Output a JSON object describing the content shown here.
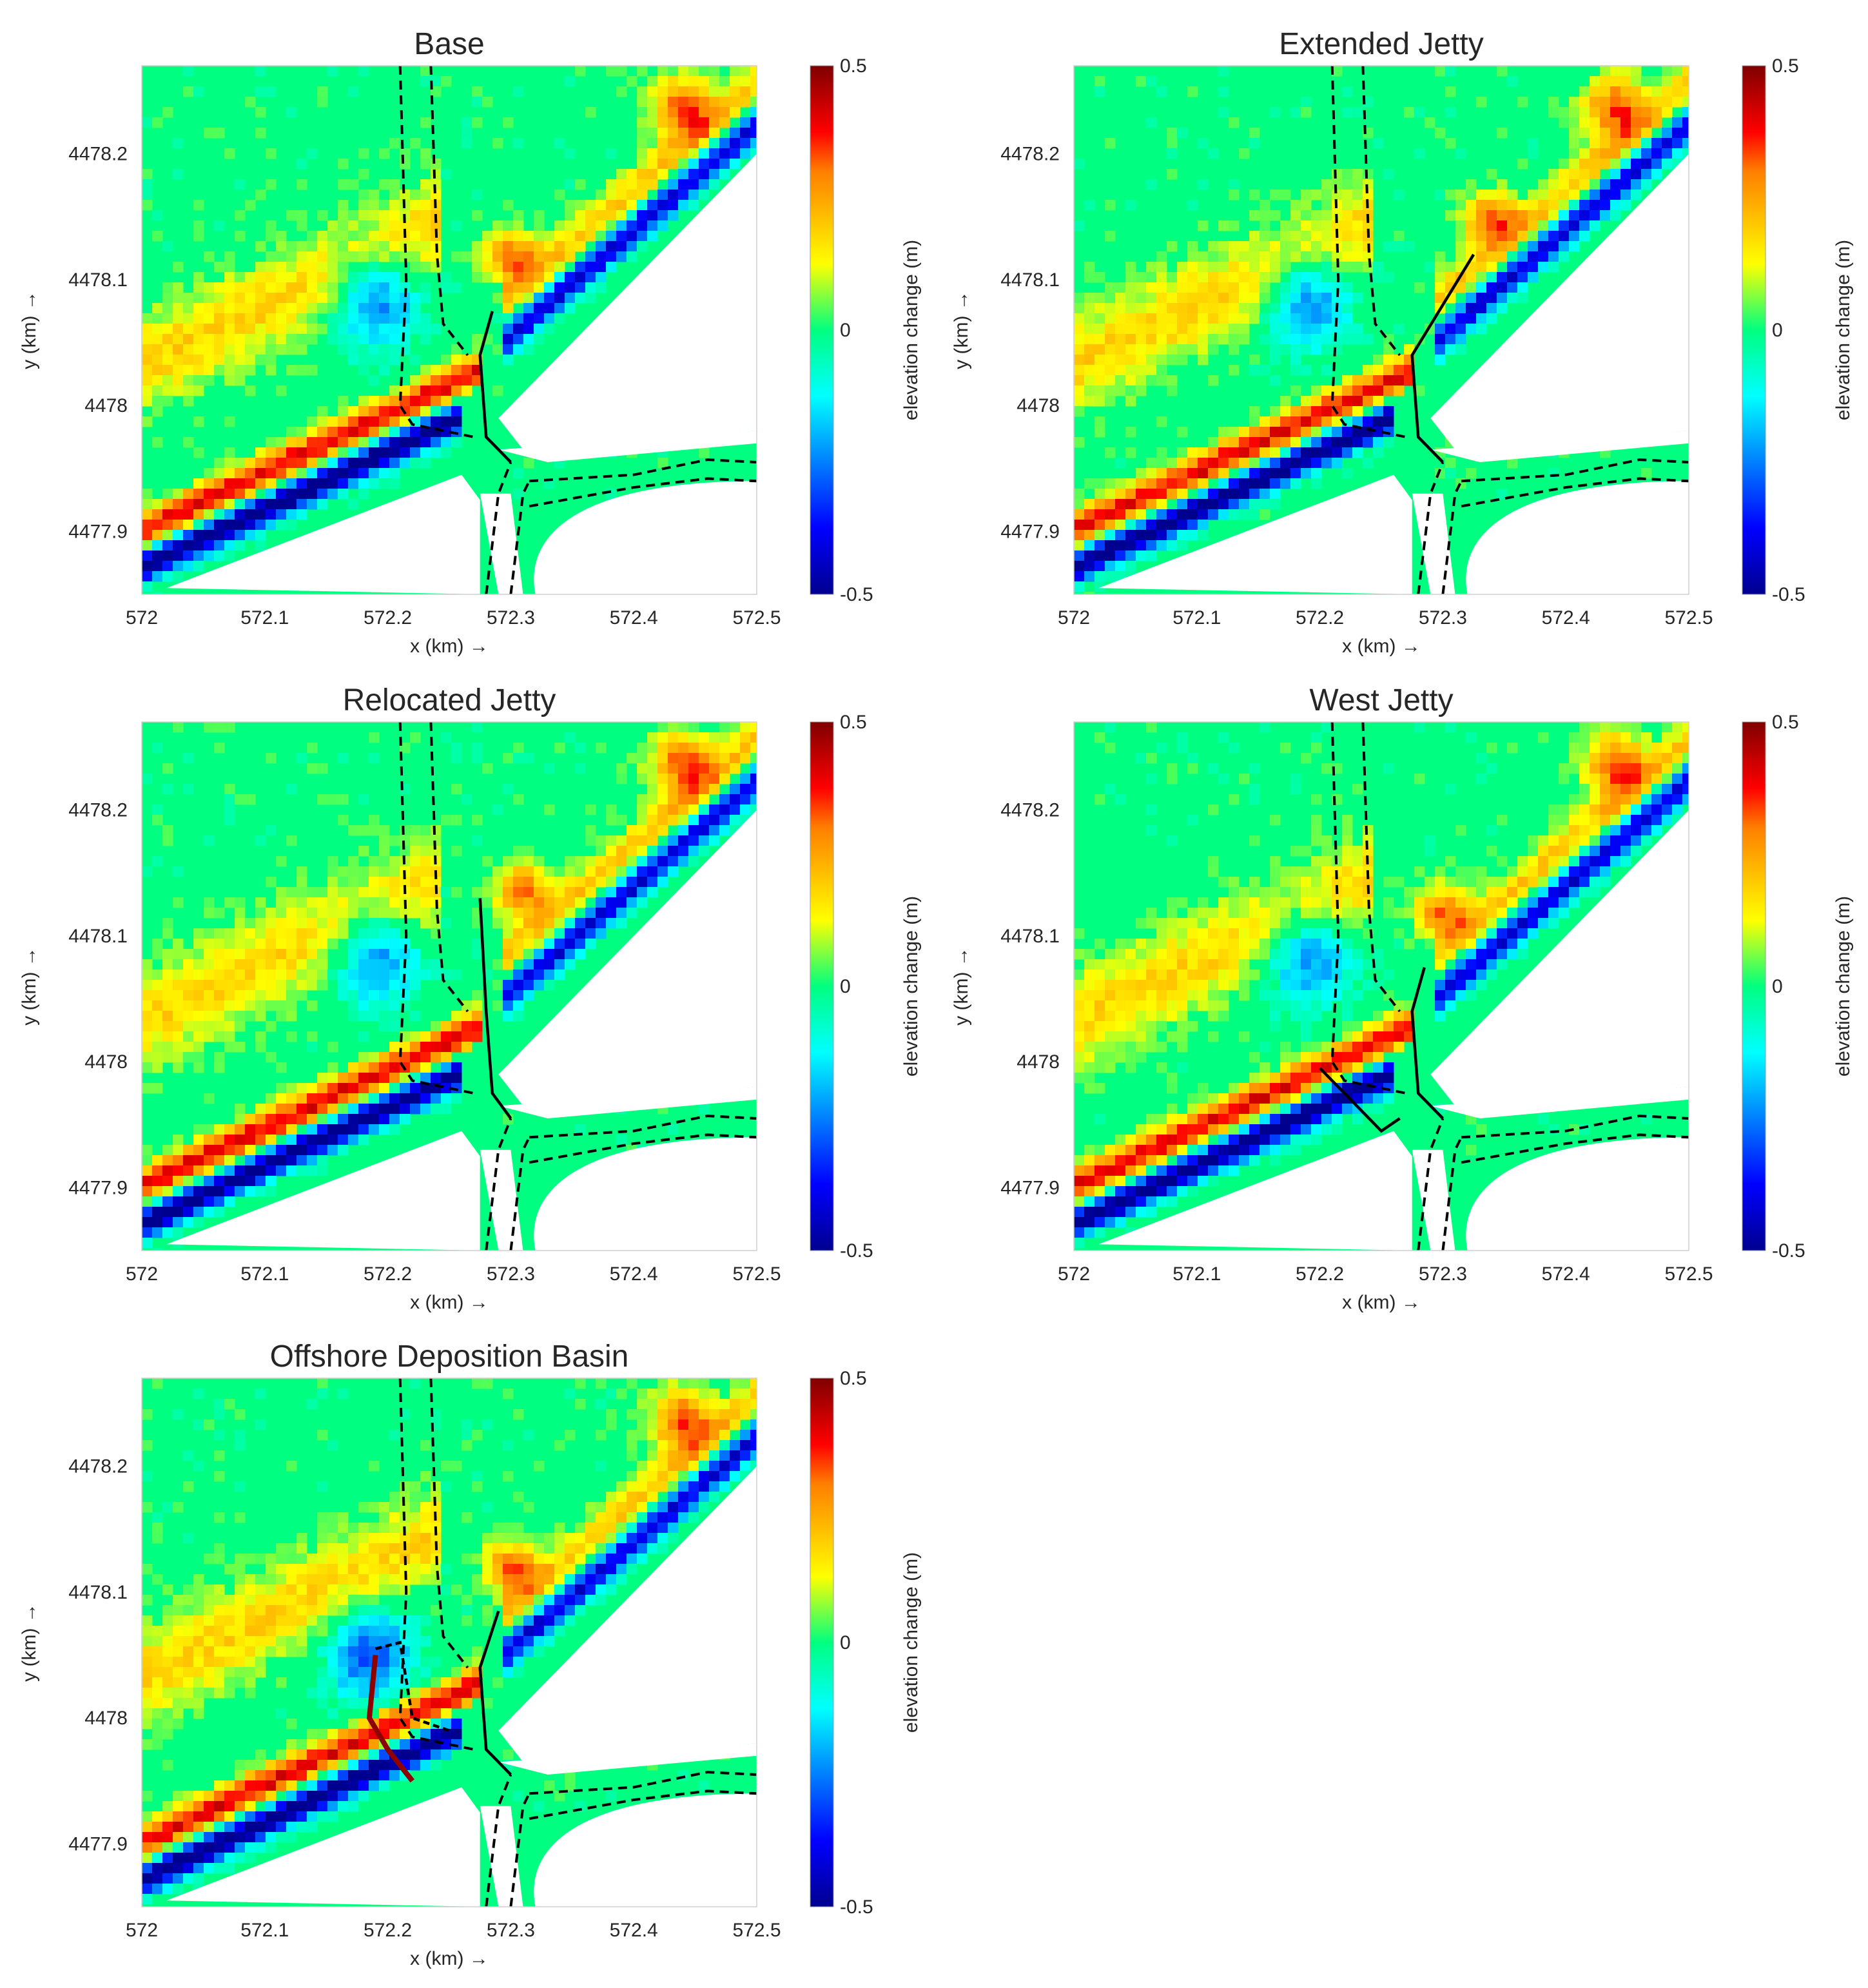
{
  "figure": {
    "x_axis_label": "x (km) →",
    "y_axis_label": "y (km) →",
    "colorbar_label": "elevation change (m)",
    "colorbar_ticks": [
      "0.5",
      "0",
      "-0.5"
    ],
    "colormap": "jet",
    "colormap_colors": [
      "#00008f",
      "#0000ff",
      "#00ffff",
      "#00ff80",
      "#ffff00",
      "#ff7f00",
      "#ff0000",
      "#7f0000"
    ],
    "background_color": "#00ff80",
    "land_color": "#ffffff",
    "structure_color": "#000000"
  },
  "chart_data": [
    {
      "type": "heatmap",
      "title": "Base",
      "xlabel": "x (km) →",
      "ylabel": "y (km) →",
      "xlim": [
        572,
        572.5
      ],
      "ylim": [
        4477.85,
        4478.27
      ],
      "x_ticks": [
        "572",
        "572.1",
        "572.2",
        "572.3",
        "572.4",
        "572.5"
      ],
      "y_ticks": [
        "4477.9",
        "4478",
        "4478.1",
        "4478.2"
      ],
      "colorbar": {
        "label": "elevation change (m)",
        "range": [
          -0.5,
          0.5
        ],
        "ticks": [
          "0.5",
          "0",
          "-0.5"
        ]
      },
      "variant": "base"
    },
    {
      "type": "heatmap",
      "title": "Extended Jetty",
      "xlabel": "x (km) →",
      "ylabel": "y (km) →",
      "xlim": [
        572,
        572.5
      ],
      "ylim": [
        4477.85,
        4478.27
      ],
      "x_ticks": [
        "572",
        "572.1",
        "572.2",
        "572.3",
        "572.4",
        "572.5"
      ],
      "y_ticks": [
        "4477.9",
        "4478",
        "4478.1",
        "4478.2"
      ],
      "colorbar": {
        "label": "elevation change (m)",
        "range": [
          -0.5,
          0.5
        ],
        "ticks": [
          "0.5",
          "0",
          "-0.5"
        ]
      },
      "variant": "extended"
    },
    {
      "type": "heatmap",
      "title": "Relocated Jetty",
      "xlabel": "x (km) →",
      "ylabel": "y (km) →",
      "xlim": [
        572,
        572.5
      ],
      "ylim": [
        4477.85,
        4478.27
      ],
      "x_ticks": [
        "572",
        "572.1",
        "572.2",
        "572.3",
        "572.4",
        "572.5"
      ],
      "y_ticks": [
        "4477.9",
        "4478",
        "4478.1",
        "4478.2"
      ],
      "colorbar": {
        "label": "elevation change (m)",
        "range": [
          -0.5,
          0.5
        ],
        "ticks": [
          "0.5",
          "0",
          "-0.5"
        ]
      },
      "variant": "relocated"
    },
    {
      "type": "heatmap",
      "title": "West Jetty",
      "xlabel": "x (km) →",
      "ylabel": "y (km) →",
      "xlim": [
        572,
        572.5
      ],
      "ylim": [
        4477.85,
        4478.27
      ],
      "x_ticks": [
        "572",
        "572.1",
        "572.2",
        "572.3",
        "572.4",
        "572.5"
      ],
      "y_ticks": [
        "4477.9",
        "4478",
        "4478.1",
        "4478.2"
      ],
      "colorbar": {
        "label": "elevation change (m)",
        "range": [
          -0.5,
          0.5
        ],
        "ticks": [
          "0.5",
          "0",
          "-0.5"
        ]
      },
      "variant": "west"
    },
    {
      "type": "heatmap",
      "title": "Offshore Deposition Basin",
      "xlabel": "x (km) →",
      "ylabel": "y (km) →",
      "xlim": [
        572,
        572.5
      ],
      "ylim": [
        4477.85,
        4478.27
      ],
      "x_ticks": [
        "572",
        "572.1",
        "572.2",
        "572.3",
        "572.4",
        "572.5"
      ],
      "y_ticks": [
        "4477.9",
        "4478",
        "4478.1",
        "4478.2"
      ],
      "colorbar": {
        "label": "elevation change (m)",
        "range": [
          -0.5,
          0.5
        ],
        "ticks": [
          "0.5",
          "0",
          "-0.5"
        ]
      },
      "variant": "basin"
    }
  ]
}
